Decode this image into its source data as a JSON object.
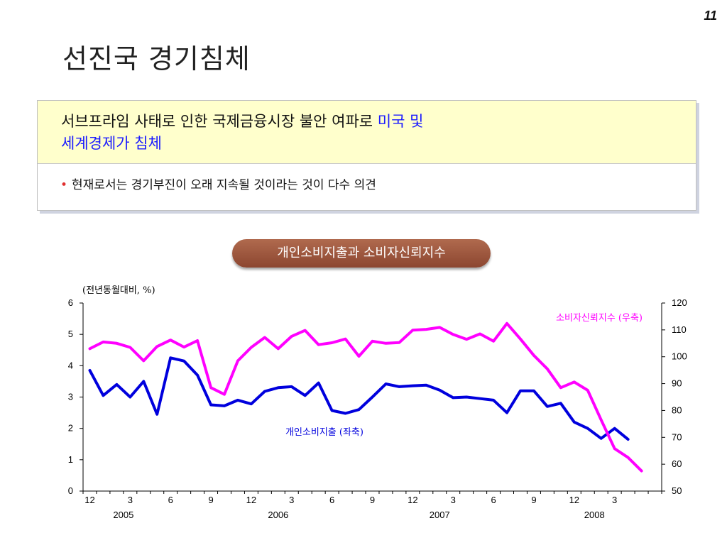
{
  "page_number": "11",
  "title": "선진국 경기침체",
  "box": {
    "headline_part1": "서브프라임 사태로 인한 국제금융시장 불안 여파로 ",
    "headline_highlight1": "미국 및",
    "headline_highlight2": "세계경제가 침체",
    "bullet": "현재로서는 경기부진이 오래 지속될 것이라는 것이 다수 의견"
  },
  "chart_button": "개인소비지출과 소비자신뢰지수",
  "colors": {
    "consumption": "#0000dd",
    "confidence": "#ff00ff",
    "highlight": "#1a1aff",
    "bullet": "#e03030"
  },
  "chart_data": {
    "type": "line",
    "unit_label": "(전년동월대비, %)",
    "x_ticks": [
      "12",
      "3",
      "6",
      "9",
      "12",
      "3",
      "6",
      "9",
      "12",
      "3",
      "6",
      "9",
      "12",
      "3"
    ],
    "year_labels": [
      "2005",
      "2006",
      "2007",
      "2008"
    ],
    "y_left": {
      "range": [
        0,
        6
      ],
      "ticks": [
        0,
        1,
        2,
        3,
        4,
        5,
        6
      ]
    },
    "y_right": {
      "range": [
        50,
        120
      ],
      "ticks": [
        50,
        60,
        70,
        80,
        90,
        100,
        110,
        120
      ]
    },
    "grid": false,
    "series": [
      {
        "name": "개인소비지출 (좌축)",
        "axis": "left",
        "values": [
          3.85,
          3.05,
          3.4,
          3.0,
          3.5,
          2.45,
          4.25,
          4.15,
          3.7,
          2.75,
          2.72,
          2.9,
          2.78,
          3.18,
          3.3,
          3.33,
          3.05,
          3.45,
          2.57,
          2.48,
          2.6,
          3.0,
          3.42,
          3.33,
          3.36,
          3.38,
          3.22,
          2.98,
          3.0,
          2.95,
          2.9,
          2.5,
          3.2,
          3.2,
          2.7,
          2.8,
          2.2,
          2.0,
          1.68,
          2.0,
          1.65
        ]
      },
      {
        "name": "소비자신뢰지수 (우축)",
        "axis": "right",
        "values": [
          103,
          105.5,
          105,
          103.5,
          98.5,
          103.8,
          106.2,
          103.6,
          106,
          88.5,
          86,
          98.5,
          103.5,
          107.2,
          103,
          107.6,
          109.8,
          104.5,
          105.2,
          106.6,
          100.2,
          105.8,
          105,
          105.3,
          109.9,
          110.2,
          110.9,
          108.3,
          106.5,
          108.5,
          105.8,
          112.4,
          106.6,
          100.5,
          95.5,
          88.5,
          90.6,
          87.5,
          76.5,
          65.8,
          62.5,
          57.5
        ]
      }
    ]
  }
}
